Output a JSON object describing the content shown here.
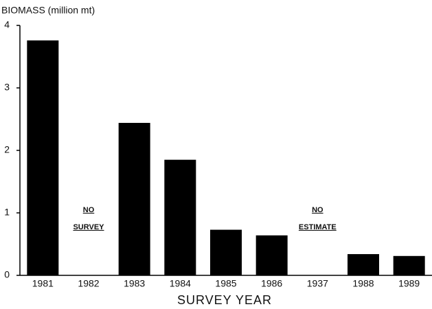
{
  "chart_data": {
    "type": "bar",
    "title": "BIOMASS (million mt)",
    "x_label": "SURVEY YEAR",
    "categories": [
      "1981",
      "1982",
      "1983",
      "1984",
      "1985",
      "1986",
      "1937",
      "1988",
      "1989"
    ],
    "values": [
      3.76,
      null,
      2.44,
      1.85,
      0.73,
      0.64,
      null,
      0.34,
      0.31
    ],
    "color": "#000000",
    "annotations": [
      [
        "NO",
        "SURVEY"
      ],
      [
        "NO",
        "ESTIMATE"
      ]
    ],
    "ylim": [
      0,
      4
    ],
    "yticks": [
      0,
      1,
      2,
      3,
      4
    ],
    "grid": false
  }
}
